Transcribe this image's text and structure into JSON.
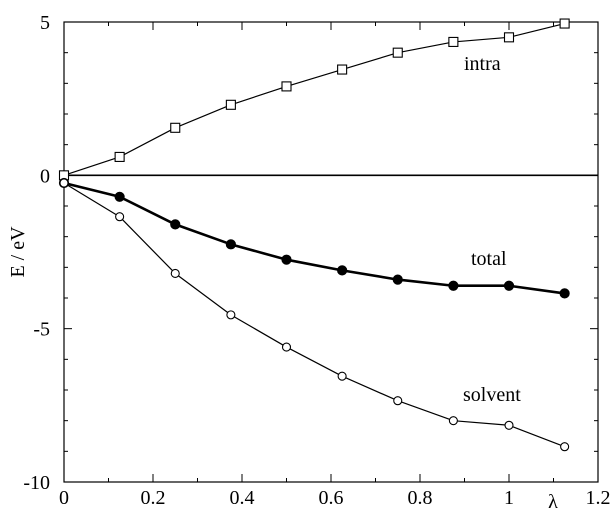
{
  "chart_data": {
    "type": "line",
    "xlabel": "λ",
    "ylabel": "E / eV",
    "xlim": [
      0,
      1.2
    ],
    "ylim": [
      -10,
      5
    ],
    "x_ticks": [
      0,
      0.2,
      0.4,
      0.6,
      0.8,
      1,
      1.2
    ],
    "x_tick_labels": [
      "0",
      "0.2",
      "0.4",
      "0.6",
      "0.8",
      "1"
    ],
    "y_ticks": [
      -10,
      -5,
      0,
      5
    ],
    "y_tick_labels": [
      "-10",
      "-5",
      "0",
      "5"
    ],
    "zero_line": 0,
    "grid": false,
    "x": [
      0,
      0.125,
      0.25,
      0.375,
      0.5,
      0.625,
      0.75,
      0.875,
      1.0,
      1.125
    ],
    "series": [
      {
        "name": "intra",
        "marker": "open-square",
        "line_weight": "thin",
        "values": [
          0.0,
          0.6,
          1.55,
          2.3,
          2.9,
          3.45,
          4.0,
          4.35,
          4.5,
          4.95
        ]
      },
      {
        "name": "total",
        "marker": "filled-circle",
        "line_weight": "thick",
        "values": [
          -0.25,
          -0.7,
          -1.6,
          -2.25,
          -2.75,
          -3.1,
          -3.4,
          -3.6,
          -3.6,
          -3.85
        ]
      },
      {
        "name": "solvent",
        "marker": "open-circle",
        "line_weight": "thin",
        "values": [
          -0.25,
          -1.35,
          -3.2,
          -4.55,
          -5.6,
          -6.55,
          -7.35,
          -8.0,
          -8.15,
          -8.85
        ]
      }
    ],
    "colors": {
      "line": "#000000",
      "background": "#ffffff"
    }
  }
}
